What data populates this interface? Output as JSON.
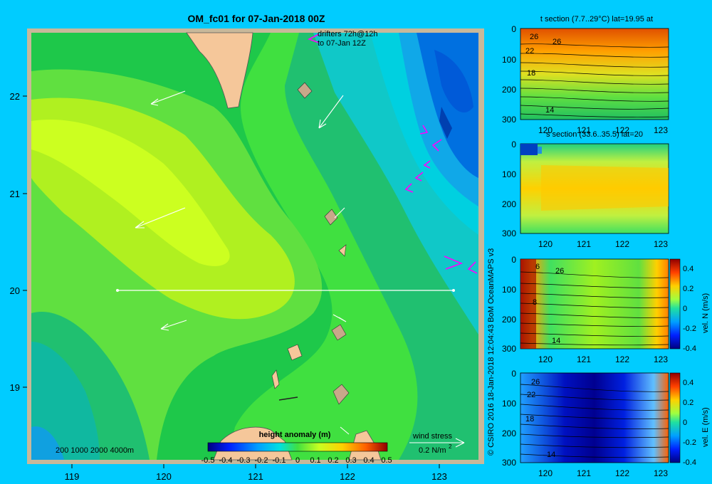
{
  "main": {
    "title": "OM_fc01 for 07-Jan-2018 00Z",
    "drifters_line1": "drifters 72h@12h",
    "drifters_line2": "to 07-Jan 12Z",
    "depth_legend": "200  1000  2000  4000m",
    "wind_stress_label": "wind stress",
    "wind_stress_scale": "0.2 N/m",
    "wind_stress_exp": "2",
    "colorbar_title": "height anomaly  (m)",
    "colorbar_ticks": [
      "-0.5",
      "-0.4",
      "-0.3",
      "-0.2",
      "-0.1",
      "0",
      "0.1",
      "0.2",
      "0.3",
      "0.4",
      "0.5"
    ],
    "x_ticks": [
      "119",
      "120",
      "121",
      "122",
      "123"
    ],
    "y_ticks": [
      "22",
      "21",
      "20",
      "19"
    ]
  },
  "credit": "© CSIRO 2016   18-Jan-2018 12:04:43 BoM OceanMAPS v3",
  "panels": [
    {
      "title": "t section (7.7..29°C) lat=19.95 at",
      "labels": [
        "26",
        "26",
        "22",
        "18",
        "14"
      ],
      "y_ticks": [
        "0",
        "100",
        "200",
        "300"
      ],
      "x_ticks": [
        "120",
        "121",
        "122",
        "123"
      ]
    },
    {
      "title": "s section (33.6..35.5) lat=20",
      "y_ticks": [
        "0",
        "100",
        "200",
        "300"
      ],
      "x_ticks": [
        "120",
        "121",
        "122",
        "123"
      ]
    },
    {
      "title": "",
      "labels": [
        "6",
        "26",
        "8",
        "14"
      ],
      "y_ticks": [
        "0",
        "100",
        "200",
        "300"
      ],
      "x_ticks": [
        "120",
        "121",
        "122",
        "123"
      ],
      "cbar_label": "vel. N (m/s)",
      "cbar_ticks": [
        "0.4",
        "0.2",
        "0",
        "-0.2",
        "-0.4"
      ]
    },
    {
      "title": "",
      "labels": [
        "26",
        "22",
        "18",
        "14"
      ],
      "y_ticks": [
        "0",
        "100",
        "200",
        "300"
      ],
      "x_ticks": [
        "120",
        "121",
        "122",
        "123"
      ],
      "cbar_label": "vel. E (m/s)",
      "cbar_ticks": [
        "0.4",
        "0.2",
        "0",
        "-0.2",
        "-0.4"
      ]
    }
  ],
  "colors": {
    "background": "#00ccff",
    "frame": "#c8b89a",
    "land": "#f5c79a"
  }
}
